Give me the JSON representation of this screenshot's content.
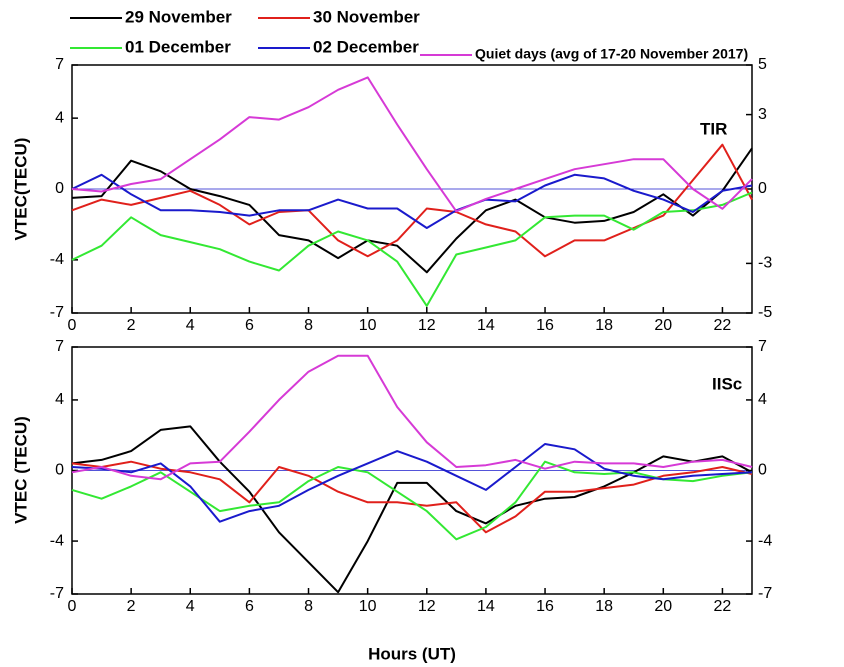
{
  "chart_data": [
    {
      "type": "line",
      "annotation": "TIR",
      "ylabel": "VTEC(TECU)",
      "x": [
        0,
        1,
        2,
        3,
        4,
        5,
        6,
        7,
        8,
        9,
        10,
        11,
        12,
        13,
        14,
        15,
        16,
        17,
        18,
        19,
        20,
        21,
        22,
        23
      ],
      "xlim": [
        0,
        23
      ],
      "xticks": [
        0,
        2,
        4,
        6,
        8,
        10,
        12,
        14,
        16,
        18,
        20,
        22
      ],
      "ylim": [
        -7,
        7
      ],
      "yticks": [
        -7,
        -4,
        0,
        4,
        7
      ],
      "y2lim": [
        -5,
        5
      ],
      "y2ticks": [
        -5,
        -3,
        0,
        3,
        5
      ],
      "series": [
        {
          "name": "29 November",
          "color": "#000000",
          "values": [
            -0.5,
            -0.4,
            1.6,
            1.0,
            0,
            -0.4,
            -0.9,
            -2.6,
            -2.9,
            -3.9,
            -2.9,
            -3.2,
            -4.7,
            -2.8,
            -1.2,
            -0.6,
            -1.6,
            -1.9,
            -1.8,
            -1.3,
            -0.3,
            -1.5,
            -0.1,
            2.3
          ]
        },
        {
          "name": "30 November",
          "color": "#e0201b",
          "values": [
            -1.2,
            -0.6,
            -0.9,
            -0.5,
            -0.1,
            -0.9,
            -2.0,
            -1.3,
            -1.2,
            -2.9,
            -3.8,
            -2.9,
            -1.1,
            -1.3,
            -2.0,
            -2.4,
            -3.8,
            -2.9,
            -2.9,
            -2.2,
            -1.5,
            0.5,
            2.5,
            -0.6
          ]
        },
        {
          "name": "01 December",
          "color": "#33e833",
          "values": [
            -4.0,
            -3.2,
            -1.6,
            -2.6,
            -3.0,
            -3.4,
            -4.1,
            -4.6,
            -3.2,
            -2.4,
            -2.9,
            -4.1,
            -6.6,
            -3.7,
            -3.3,
            -2.9,
            -1.6,
            -1.5,
            -1.5,
            -2.3,
            -1.3,
            -1.2,
            -0.9,
            -0.2
          ]
        },
        {
          "name": "02 December",
          "color": "#1a1acc",
          "values": [
            0,
            0.8,
            -0.3,
            -1.2,
            -1.2,
            -1.3,
            -1.5,
            -1.2,
            -1.2,
            -0.6,
            -1.1,
            -1.1,
            -2.2,
            -1.2,
            -0.6,
            -0.7,
            0.2,
            0.8,
            0.6,
            -0.1,
            -0.6,
            -1.3,
            -0.1,
            0.2
          ]
        },
        {
          "name": "Quiet days (avg of 17-20 November 2017)",
          "color": "#d63ad6",
          "axis": "y2",
          "values": [
            0,
            -0.1,
            0.2,
            0.4,
            1.2,
            2.0,
            2.9,
            2.8,
            3.3,
            4.0,
            4.5,
            2.6,
            0.8,
            -0.9,
            -0.4,
            0,
            0.4,
            0.8,
            1.0,
            1.2,
            1.2,
            0,
            -0.8,
            0.4
          ]
        }
      ]
    },
    {
      "type": "line",
      "annotation": "IISc",
      "ylabel": "VTEC (TECU)",
      "xlabel": "Hours (UT)",
      "x": [
        0,
        1,
        2,
        3,
        4,
        5,
        6,
        7,
        8,
        9,
        10,
        11,
        12,
        13,
        14,
        15,
        16,
        17,
        18,
        19,
        20,
        21,
        22,
        23
      ],
      "xlim": [
        0,
        23
      ],
      "xticks": [
        0,
        2,
        4,
        6,
        8,
        10,
        12,
        14,
        16,
        18,
        20,
        22
      ],
      "ylim": [
        -7,
        7
      ],
      "yticks": [
        -7,
        -4,
        0,
        4,
        7
      ],
      "y2lim": [
        -7,
        7
      ],
      "y2ticks": [
        -7,
        -4,
        0,
        4,
        7
      ],
      "series": [
        {
          "color": "#000000",
          "values": [
            0.4,
            0.6,
            1.1,
            2.3,
            2.5,
            0.5,
            -1.2,
            -3.5,
            -5.2,
            -6.9,
            -4.0,
            -0.7,
            -0.7,
            -2.3,
            -3.0,
            -2.0,
            -1.6,
            -1.5,
            -0.9,
            -0.1,
            0.8,
            0.5,
            0.8,
            -0.1
          ]
        },
        {
          "color": "#e0201b",
          "values": [
            0.4,
            0.2,
            0.5,
            0.1,
            -0.1,
            -0.5,
            -1.8,
            0.2,
            -0.3,
            -1.2,
            -1.8,
            -1.8,
            -2.0,
            -1.8,
            -3.5,
            -2.6,
            -1.2,
            -1.2,
            -1.0,
            -0.8,
            -0.3,
            -0.1,
            0.2,
            -0.2
          ]
        },
        {
          "color": "#33e833",
          "values": [
            -1.1,
            -1.6,
            -0.9,
            -0.1,
            -1.2,
            -2.3,
            -2.0,
            -1.8,
            -0.6,
            0.2,
            -0.1,
            -1.2,
            -2.3,
            -3.9,
            -3.2,
            -1.8,
            0.5,
            -0.1,
            -0.2,
            -0.1,
            -0.5,
            -0.6,
            -0.3,
            -0.1
          ]
        },
        {
          "color": "#1a1acc",
          "values": [
            0.2,
            0.1,
            -0.1,
            0.4,
            -0.9,
            -2.9,
            -2.3,
            -2.0,
            -1.1,
            -0.3,
            0.4,
            1.1,
            0.5,
            -0.3,
            -1.1,
            0.2,
            1.5,
            1.2,
            0.1,
            -0.3,
            -0.5,
            -0.3,
            -0.2,
            -0.1
          ]
        },
        {
          "color": "#d63ad6",
          "axis": "y2",
          "values": [
            -0.1,
            0.2,
            -0.3,
            -0.5,
            0.4,
            0.5,
            2.2,
            4.0,
            5.6,
            6.5,
            6.5,
            3.6,
            1.6,
            0.2,
            0.3,
            0.6,
            0.1,
            0.5,
            0.4,
            0.4,
            0.2,
            0.5,
            0.6,
            0.2
          ]
        }
      ]
    }
  ]
}
